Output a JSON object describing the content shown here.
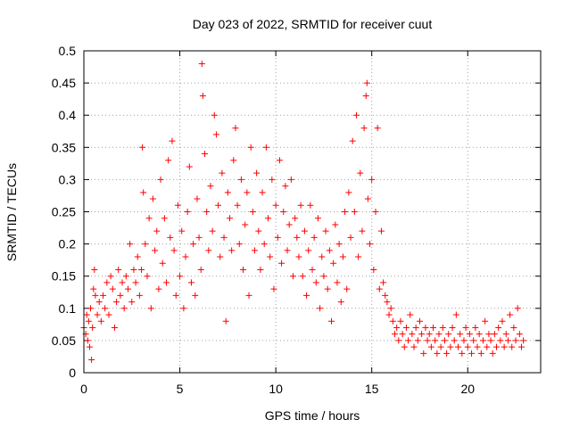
{
  "chart_data": {
    "type": "scatter",
    "title": "Day 023 of 2022, SRMTID for receiver cuut",
    "xlabel": "GPS time / hours",
    "ylabel": "SRMTID / TECUs",
    "xlim": [
      0,
      23.8
    ],
    "ylim": [
      0,
      0.5
    ],
    "xticks": [
      0,
      5,
      10,
      15,
      20
    ],
    "xtick_labels": [
      "0",
      "5",
      "10",
      "15",
      "20"
    ],
    "yticks": [
      0,
      0.05,
      0.1,
      0.15,
      0.2,
      0.25,
      0.3,
      0.35,
      0.4,
      0.45,
      0.5
    ],
    "ytick_labels": [
      "0",
      "0.05",
      "0.1",
      "0.15",
      "0.2",
      "0.25",
      "0.3",
      "0.35",
      "0.4",
      "0.45",
      "0.5"
    ],
    "grid": true,
    "legend": "none",
    "marker": "plus",
    "color": "#ff0000",
    "series": [
      {
        "points": [
          [
            0.0,
            0.07
          ],
          [
            0.1,
            0.06
          ],
          [
            0.15,
            0.09
          ],
          [
            0.2,
            0.05
          ],
          [
            0.25,
            0.08
          ],
          [
            0.3,
            0.04
          ],
          [
            0.35,
            0.1
          ],
          [
            0.4,
            0.02
          ],
          [
            0.45,
            0.07
          ],
          [
            0.5,
            0.13
          ],
          [
            0.55,
            0.16
          ],
          [
            0.6,
            0.12
          ],
          [
            0.7,
            0.09
          ],
          [
            0.8,
            0.11
          ],
          [
            0.9,
            0.08
          ],
          [
            1.0,
            0.12
          ],
          [
            1.1,
            0.1
          ],
          [
            1.2,
            0.14
          ],
          [
            1.3,
            0.09
          ],
          [
            1.4,
            0.15
          ],
          [
            1.5,
            0.13
          ],
          [
            1.6,
            0.07
          ],
          [
            1.7,
            0.11
          ],
          [
            1.8,
            0.16
          ],
          [
            1.9,
            0.12
          ],
          [
            2.0,
            0.14
          ],
          [
            2.1,
            0.1
          ],
          [
            2.2,
            0.15
          ],
          [
            2.3,
            0.13
          ],
          [
            2.4,
            0.2
          ],
          [
            2.5,
            0.11
          ],
          [
            2.6,
            0.16
          ],
          [
            2.7,
            0.14
          ],
          [
            2.8,
            0.18
          ],
          [
            2.9,
            0.12
          ],
          [
            3.0,
            0.16
          ],
          [
            3.05,
            0.35
          ],
          [
            3.1,
            0.28
          ],
          [
            3.2,
            0.2
          ],
          [
            3.3,
            0.15
          ],
          [
            3.4,
            0.24
          ],
          [
            3.5,
            0.1
          ],
          [
            3.6,
            0.27
          ],
          [
            3.7,
            0.19
          ],
          [
            3.8,
            0.22
          ],
          [
            3.9,
            0.13
          ],
          [
            4.0,
            0.3
          ],
          [
            4.1,
            0.17
          ],
          [
            4.2,
            0.24
          ],
          [
            4.3,
            0.14
          ],
          [
            4.4,
            0.33
          ],
          [
            4.5,
            0.21
          ],
          [
            4.6,
            0.36
          ],
          [
            4.7,
            0.19
          ],
          [
            4.8,
            0.12
          ],
          [
            4.9,
            0.26
          ],
          [
            5.0,
            0.15
          ],
          [
            5.1,
            0.22
          ],
          [
            5.2,
            0.1
          ],
          [
            5.3,
            0.18
          ],
          [
            5.4,
            0.25
          ],
          [
            5.5,
            0.32
          ],
          [
            5.6,
            0.14
          ],
          [
            5.7,
            0.2
          ],
          [
            5.8,
            0.12
          ],
          [
            5.9,
            0.27
          ],
          [
            6.0,
            0.21
          ],
          [
            6.1,
            0.16
          ],
          [
            6.15,
            0.48
          ],
          [
            6.2,
            0.43
          ],
          [
            6.3,
            0.34
          ],
          [
            6.4,
            0.25
          ],
          [
            6.5,
            0.19
          ],
          [
            6.6,
            0.29
          ],
          [
            6.7,
            0.22
          ],
          [
            6.8,
            0.4
          ],
          [
            6.9,
            0.37
          ],
          [
            7.0,
            0.26
          ],
          [
            7.1,
            0.18
          ],
          [
            7.2,
            0.31
          ],
          [
            7.3,
            0.21
          ],
          [
            7.4,
            0.08
          ],
          [
            7.5,
            0.28
          ],
          [
            7.6,
            0.24
          ],
          [
            7.7,
            0.19
          ],
          [
            7.8,
            0.33
          ],
          [
            7.9,
            0.38
          ],
          [
            8.0,
            0.26
          ],
          [
            8.1,
            0.2
          ],
          [
            8.2,
            0.3
          ],
          [
            8.3,
            0.16
          ],
          [
            8.4,
            0.23
          ],
          [
            8.5,
            0.28
          ],
          [
            8.6,
            0.12
          ],
          [
            8.7,
            0.35
          ],
          [
            8.8,
            0.25
          ],
          [
            8.9,
            0.19
          ],
          [
            9.0,
            0.31
          ],
          [
            9.1,
            0.22
          ],
          [
            9.2,
            0.16
          ],
          [
            9.3,
            0.28
          ],
          [
            9.4,
            0.2
          ],
          [
            9.5,
            0.35
          ],
          [
            9.6,
            0.24
          ],
          [
            9.7,
            0.18
          ],
          [
            9.8,
            0.3
          ],
          [
            9.9,
            0.13
          ],
          [
            10.0,
            0.26
          ],
          [
            10.1,
            0.21
          ],
          [
            10.2,
            0.33
          ],
          [
            10.3,
            0.17
          ],
          [
            10.4,
            0.25
          ],
          [
            10.5,
            0.29
          ],
          [
            10.6,
            0.19
          ],
          [
            10.7,
            0.23
          ],
          [
            10.8,
            0.3
          ],
          [
            10.9,
            0.15
          ],
          [
            11.0,
            0.24
          ],
          [
            11.1,
            0.21
          ],
          [
            11.2,
            0.18
          ],
          [
            11.3,
            0.26
          ],
          [
            11.4,
            0.15
          ],
          [
            11.5,
            0.22
          ],
          [
            11.6,
            0.12
          ],
          [
            11.7,
            0.19
          ],
          [
            11.8,
            0.26
          ],
          [
            11.9,
            0.16
          ],
          [
            12.0,
            0.21
          ],
          [
            12.1,
            0.14
          ],
          [
            12.2,
            0.24
          ],
          [
            12.3,
            0.1
          ],
          [
            12.4,
            0.18
          ],
          [
            12.5,
            0.15
          ],
          [
            12.6,
            0.22
          ],
          [
            12.7,
            0.13
          ],
          [
            12.8,
            0.19
          ],
          [
            12.9,
            0.08
          ],
          [
            13.0,
            0.17
          ],
          [
            13.1,
            0.23
          ],
          [
            13.2,
            0.14
          ],
          [
            13.3,
            0.2
          ],
          [
            13.4,
            0.11
          ],
          [
            13.5,
            0.18
          ],
          [
            13.6,
            0.25
          ],
          [
            13.7,
            0.13
          ],
          [
            13.8,
            0.28
          ],
          [
            13.9,
            0.21
          ],
          [
            14.0,
            0.36
          ],
          [
            14.1,
            0.25
          ],
          [
            14.2,
            0.4
          ],
          [
            14.3,
            0.18
          ],
          [
            14.4,
            0.31
          ],
          [
            14.5,
            0.22
          ],
          [
            14.6,
            0.38
          ],
          [
            14.7,
            0.43
          ],
          [
            14.75,
            0.45
          ],
          [
            14.8,
            0.27
          ],
          [
            14.9,
            0.2
          ],
          [
            15.0,
            0.3
          ],
          [
            15.1,
            0.16
          ],
          [
            15.2,
            0.25
          ],
          [
            15.3,
            0.38
          ],
          [
            15.4,
            0.13
          ],
          [
            15.5,
            0.22
          ],
          [
            15.6,
            0.14
          ],
          [
            15.7,
            0.12
          ],
          [
            15.8,
            0.11
          ],
          [
            15.9,
            0.09
          ],
          [
            16.0,
            0.1
          ],
          [
            16.1,
            0.08
          ],
          [
            16.2,
            0.06
          ],
          [
            16.3,
            0.07
          ],
          [
            16.4,
            0.05
          ],
          [
            16.5,
            0.08
          ],
          [
            16.6,
            0.06
          ],
          [
            16.7,
            0.04
          ],
          [
            16.8,
            0.07
          ],
          [
            16.9,
            0.05
          ],
          [
            17.0,
            0.09
          ],
          [
            17.1,
            0.06
          ],
          [
            17.2,
            0.04
          ],
          [
            17.3,
            0.07
          ],
          [
            17.4,
            0.05
          ],
          [
            17.5,
            0.08
          ],
          [
            17.6,
            0.06
          ],
          [
            17.7,
            0.03
          ],
          [
            17.8,
            0.07
          ],
          [
            17.9,
            0.05
          ],
          [
            18.0,
            0.06
          ],
          [
            18.1,
            0.04
          ],
          [
            18.2,
            0.07
          ],
          [
            18.3,
            0.05
          ],
          [
            18.4,
            0.03
          ],
          [
            18.5,
            0.06
          ],
          [
            18.6,
            0.04
          ],
          [
            18.7,
            0.07
          ],
          [
            18.8,
            0.05
          ],
          [
            18.9,
            0.03
          ],
          [
            19.0,
            0.06
          ],
          [
            19.1,
            0.04
          ],
          [
            19.2,
            0.07
          ],
          [
            19.3,
            0.05
          ],
          [
            19.4,
            0.09
          ],
          [
            19.5,
            0.04
          ],
          [
            19.6,
            0.06
          ],
          [
            19.7,
            0.03
          ],
          [
            19.8,
            0.05
          ],
          [
            19.9,
            0.07
          ],
          [
            20.0,
            0.04
          ],
          [
            20.1,
            0.06
          ],
          [
            20.2,
            0.03
          ],
          [
            20.3,
            0.05
          ],
          [
            20.4,
            0.07
          ],
          [
            20.5,
            0.04
          ],
          [
            20.6,
            0.06
          ],
          [
            20.7,
            0.03
          ],
          [
            20.8,
            0.05
          ],
          [
            20.9,
            0.08
          ],
          [
            21.0,
            0.04
          ],
          [
            21.1,
            0.06
          ],
          [
            21.2,
            0.05
          ],
          [
            21.3,
            0.03
          ],
          [
            21.4,
            0.06
          ],
          [
            21.5,
            0.04
          ],
          [
            21.6,
            0.07
          ],
          [
            21.7,
            0.05
          ],
          [
            21.8,
            0.08
          ],
          [
            21.9,
            0.04
          ],
          [
            22.0,
            0.06
          ],
          [
            22.1,
            0.05
          ],
          [
            22.2,
            0.09
          ],
          [
            22.3,
            0.04
          ],
          [
            22.4,
            0.07
          ],
          [
            22.5,
            0.05
          ],
          [
            22.6,
            0.1
          ],
          [
            22.7,
            0.06
          ],
          [
            22.8,
            0.04
          ],
          [
            22.9,
            0.05
          ]
        ]
      }
    ]
  }
}
